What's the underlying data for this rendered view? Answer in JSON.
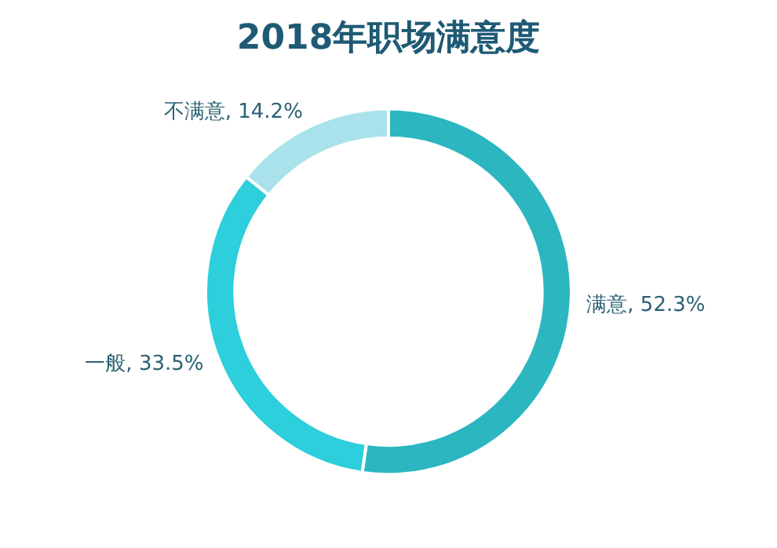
{
  "chart_data": {
    "type": "donut",
    "title": "2018年职场满意度",
    "categories": [
      "满意",
      "一般",
      "不满意"
    ],
    "values": [
      52.3,
      33.5,
      14.2
    ],
    "colors": [
      "#2bb6c0",
      "#2ccfdb",
      "#a9e2ea"
    ],
    "value_labels": [
      ", 52.3%",
      ", 33.5%",
      ", 14.2%"
    ],
    "legend": false
  }
}
